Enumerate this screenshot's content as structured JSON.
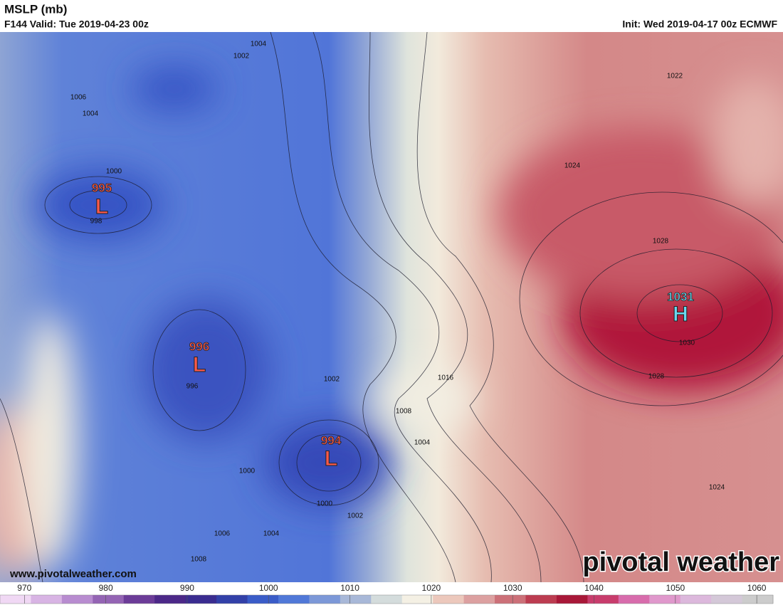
{
  "header": {
    "title": "MSLP (mb)",
    "valid": "F144 Valid: Tue 2019-04-23 00z",
    "init": "Init: Wed 2019-04-17 00z ECMWF"
  },
  "centers": [
    {
      "label": "L",
      "value": 995
    },
    {
      "label": "L",
      "value": 996
    },
    {
      "label": "L",
      "value": 994
    },
    {
      "label": "H",
      "value": 1031
    }
  ],
  "contour_labels": [
    "1004",
    "1002",
    "1006",
    "1004",
    "1000",
    "998",
    "1022",
    "1024",
    "1028",
    "1030",
    "1028",
    "1016",
    "1002",
    "1008",
    "996",
    "1004",
    "1000",
    "1000",
    "1002",
    "1006",
    "1004",
    "1008",
    "1024"
  ],
  "footer": {
    "url": "www.pivotalweather.com",
    "brand": "pivotal weather"
  },
  "colorbar": {
    "range": [
      967,
      1062
    ],
    "ticks": [
      970,
      980,
      990,
      1000,
      1010,
      1020,
      1030,
      1040,
      1050,
      1060
    ],
    "colors": [
      "#f0d8f4",
      "#d8b4e4",
      "#b88cd0",
      "#9464b4",
      "#6c3c98",
      "#4c2888",
      "#3a2c90",
      "#3240a8",
      "#3a5cc8",
      "#5078d8",
      "#7c98d8",
      "#a8b8d8",
      "#d4dcdc",
      "#f4f0e4",
      "#ecc8bc",
      "#dca0a0",
      "#cc7078",
      "#bc3c50",
      "#a81838",
      "#c83c6c",
      "#d86cac",
      "#e098cc",
      "#dcb8dc",
      "#d4c8d8",
      "#cccccc"
    ]
  }
}
